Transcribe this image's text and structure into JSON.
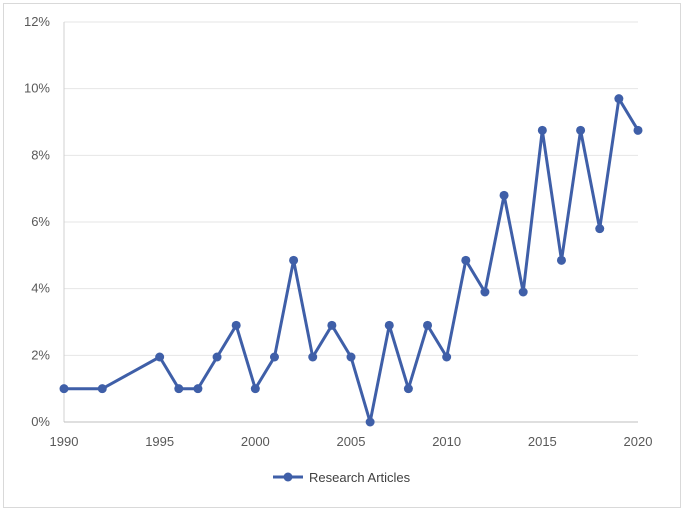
{
  "chart_data": {
    "type": "line",
    "title": "",
    "xlabel": "",
    "ylabel": "",
    "xlim": [
      1990,
      2020
    ],
    "ylim": [
      0,
      12
    ],
    "x_ticks": [
      "1990",
      "1995",
      "2000",
      "2005",
      "2010",
      "2015",
      "2020"
    ],
    "y_ticks": [
      "0%",
      "2%",
      "4%",
      "6%",
      "8%",
      "10%",
      "12%"
    ],
    "grid": "horizontal",
    "legend": "bottom",
    "series": [
      {
        "name": "Research Articles",
        "color": "#3f5fa8",
        "x": [
          1990,
          1992,
          1995,
          1996,
          1997,
          1998,
          1999,
          2000,
          2001,
          2002,
          2003,
          2004,
          2005,
          2006,
          2007,
          2008,
          2009,
          2010,
          2011,
          2012,
          2013,
          2014,
          2015,
          2016,
          2017,
          2018,
          2019,
          2020
        ],
        "values": [
          1.0,
          1.0,
          1.95,
          1.0,
          1.0,
          1.95,
          2.9,
          1.0,
          1.95,
          4.85,
          1.95,
          2.9,
          1.95,
          0.0,
          2.9,
          1.0,
          2.9,
          1.95,
          4.85,
          3.9,
          6.8,
          3.9,
          8.75,
          4.85,
          8.75,
          5.8,
          9.7,
          8.75
        ]
      }
    ]
  }
}
